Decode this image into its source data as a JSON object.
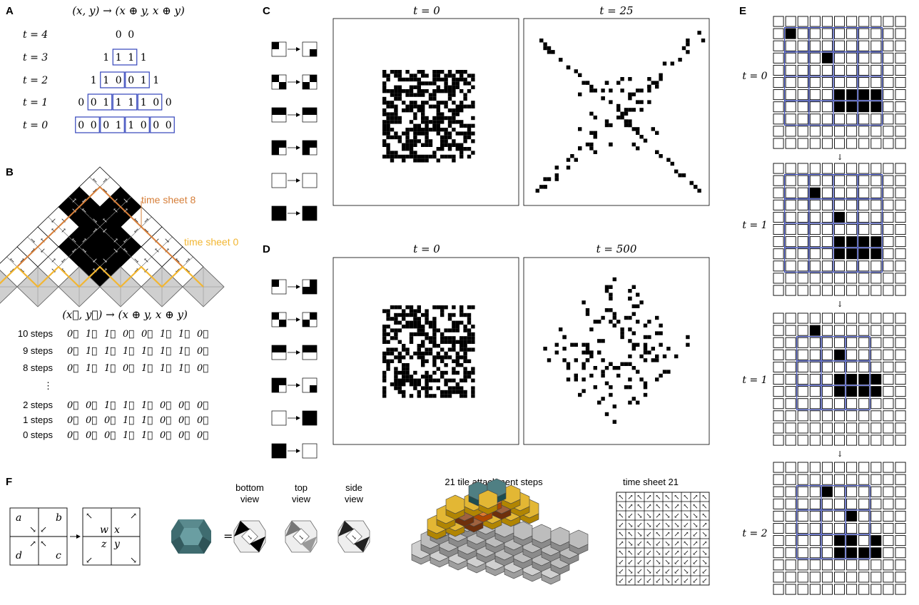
{
  "panel_labels": {
    "A": "A",
    "B": "B",
    "C": "C",
    "D": "D",
    "E": "E",
    "F": "F"
  },
  "panel_a": {
    "rule": "(x, y) → (x ⊕ y, x ⊕ y)",
    "rows": [
      {
        "t": "t = 4",
        "vals": [
          "0",
          "0"
        ]
      },
      {
        "t": "t = 3",
        "vals": [
          "1",
          "1",
          "1",
          "1"
        ]
      },
      {
        "t": "t = 2",
        "vals": [
          "1",
          "1",
          "0",
          "0",
          "1",
          "1"
        ]
      },
      {
        "t": "t = 1",
        "vals": [
          "0",
          "0",
          "1",
          "1",
          "1",
          "1",
          "0",
          "0"
        ]
      },
      {
        "t": "t = 0",
        "vals": [
          "0",
          "0",
          "0",
          "1",
          "1",
          "0",
          "0",
          "0"
        ]
      }
    ]
  },
  "panel_b": {
    "label_sheet8": "time sheet 8",
    "label_sheet0": "time sheet 0",
    "rule": "(x⃗, y⃗) → (x ⊕ y, x ⊕ y)",
    "rows": [
      {
        "label": "10 steps",
        "vals": [
          "0⃖",
          "1⃖",
          "1⃖",
          "0⃖",
          "0⃖",
          "1⃖",
          "1⃖",
          "0⃗"
        ]
      },
      {
        "label": "9 steps",
        "vals": [
          "0⃖",
          "1⃖",
          "1⃖",
          "1⃖",
          "1⃖",
          "1⃖",
          "1⃖",
          "0⃗"
        ]
      },
      {
        "label": "8 steps",
        "vals": [
          "0⃖",
          "1⃗",
          "1⃗",
          "0⃖",
          "1⃖",
          "1⃖",
          "1⃖",
          "0⃗"
        ]
      },
      {
        "label": "⋮",
        "vals": []
      },
      {
        "label": "2 steps",
        "vals": [
          "0⃖",
          "0⃗",
          "1⃖",
          "1⃗",
          "1⃖",
          "0⃖",
          "0⃗",
          "0⃖"
        ]
      },
      {
        "label": "1 steps",
        "vals": [
          "0⃗",
          "0⃗",
          "0⃗",
          "1⃖",
          "1⃗",
          "0⃖",
          "0⃗",
          "0⃖"
        ]
      },
      {
        "label": "0 steps",
        "vals": [
          "0⃗",
          "0⃖",
          "0⃗",
          "1⃗",
          "1⃖",
          "0⃖",
          "0⃗",
          "0⃖"
        ]
      }
    ]
  },
  "panel_c": {
    "t_left": "t = 0",
    "t_right": "t = 25"
  },
  "panel_d": {
    "t_left": "t = 0",
    "t_right": "t = 500"
  },
  "panel_e": {
    "labels": [
      "t = 0",
      "t = 1",
      "t = 1",
      "t = 2"
    ]
  },
  "panel_f": {
    "tile_in": {
      "a": "a",
      "b": "b",
      "c": "c",
      "d": "d"
    },
    "tile_out": {
      "w": "w",
      "x": "x",
      "y": "y",
      "z": "z"
    },
    "equals": "=",
    "views": [
      {
        "line1": "bottom",
        "line2": "view"
      },
      {
        "line1": "top",
        "line2": "view"
      },
      {
        "line1": "side",
        "line2": "view"
      }
    ],
    "steps_title": "21 tile attachment steps",
    "sheet_title": "time sheet 21"
  },
  "colors": {
    "box_blue": "#3344bb",
    "sheet8_orange": "#d67f3a",
    "sheet0_yellow": "#f2b632",
    "teal": "#4f7f83",
    "tile_yellow": "#e3b734",
    "tile_brown": "#a0623e",
    "tile_orange": "#e07a2e",
    "tile_gray": "#b9b9b9"
  }
}
